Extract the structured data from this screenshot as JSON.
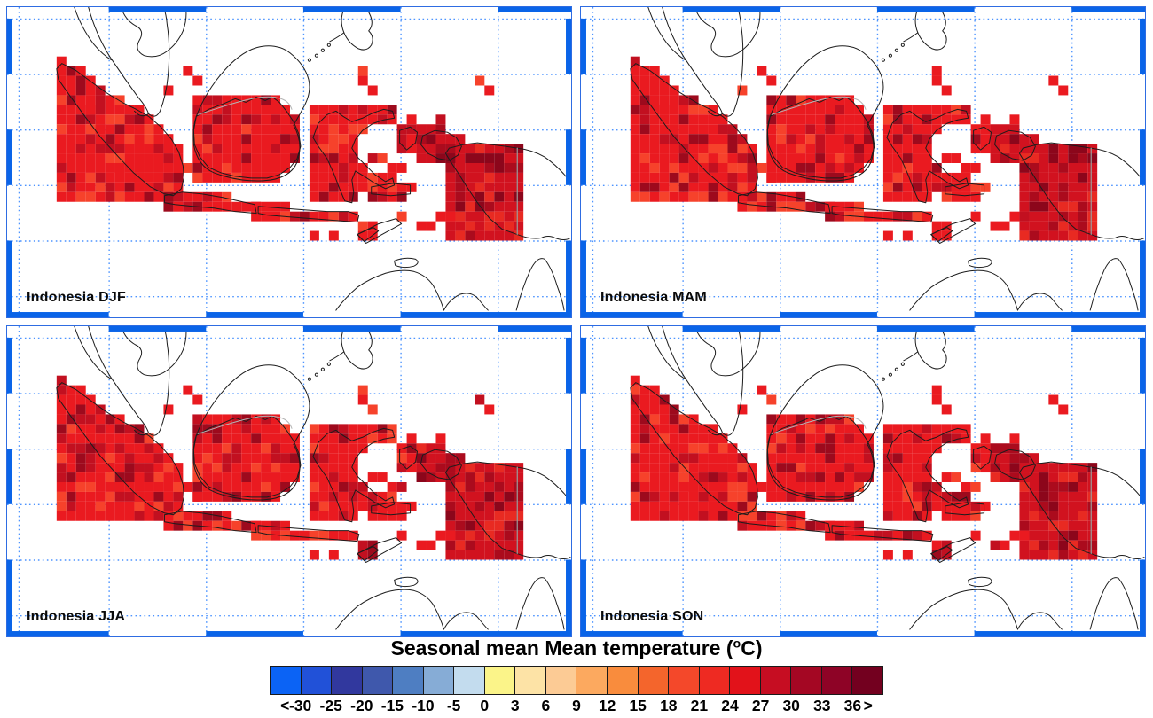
{
  "title": {
    "prefix": "Seasonal mean Mean temperature (",
    "degree_symbol": "o",
    "suffix": "C)"
  },
  "panels": [
    {
      "label": "Indonesia DJF"
    },
    {
      "label": "Indonesia MAM"
    },
    {
      "label": "Indonesia JJA"
    },
    {
      "label": "Indonesia SON"
    }
  ],
  "colorbar": {
    "tick_labels": [
      "<",
      "-30",
      "-25",
      "-20",
      "-15",
      "-10",
      "-5",
      "0",
      "3",
      "6",
      "9",
      "12",
      "15",
      "18",
      "21",
      "24",
      "27",
      "30",
      "33",
      "36",
      ">"
    ],
    "cell_colors": [
      "#0b63f5",
      "#2151d8",
      "#31389e",
      "#3f58ac",
      "#4e7ec2",
      "#86acd6",
      "#c3dcee",
      "#fbf489",
      "#fde3a6",
      "#fccb95",
      "#fca95f",
      "#f98c3d",
      "#f4652c",
      "#f4482a",
      "#ee2a22",
      "#e2121a",
      "#c60d22",
      "#a40723",
      "#8e0326",
      "#73001f"
    ]
  },
  "map_colors": {
    "frame": "#2e6ce2",
    "gridline": "#4d94ff",
    "edge_tick": "#0a64e8",
    "coastline": "#1c1c1c",
    "country_border": "#b5b5b5",
    "temp_base": "#ea1a20",
    "temp_bright": "#f6422b",
    "temp_dark": "#c21020",
    "temp_deep": "#9d0a1d",
    "background": "#ffffff"
  }
}
